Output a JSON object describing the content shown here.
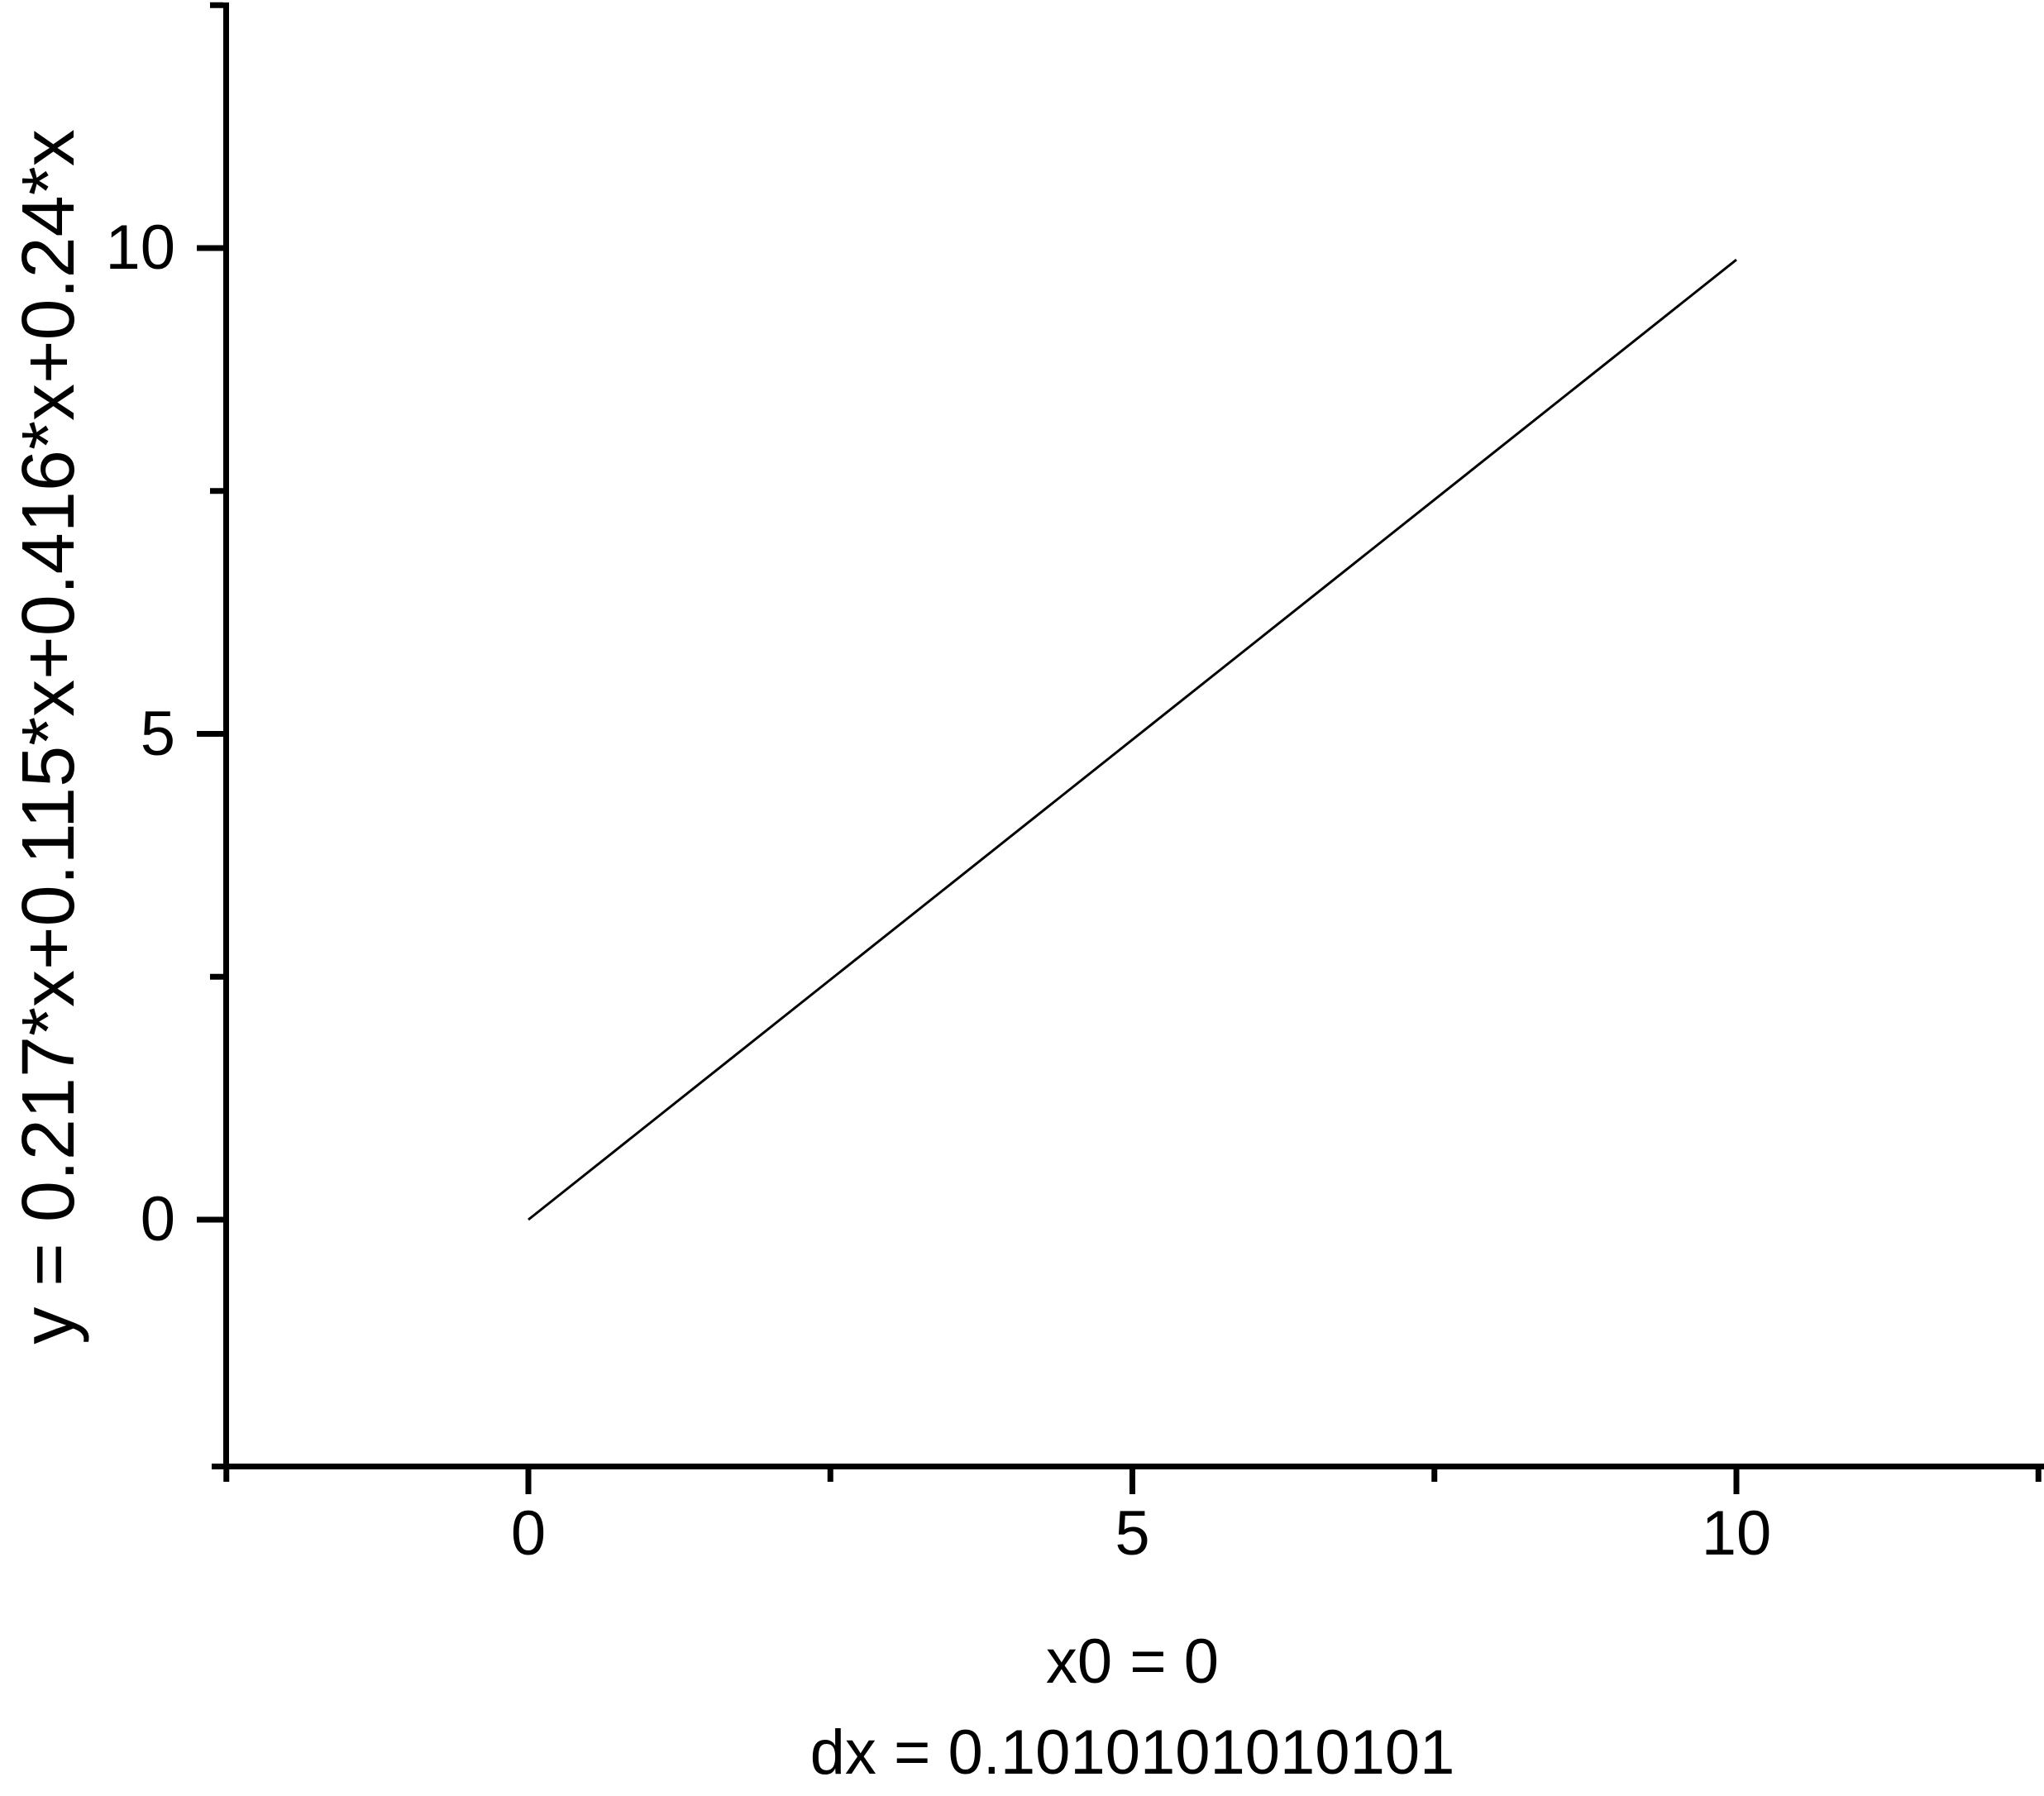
{
  "chart_data": {
    "type": "line",
    "title": "",
    "ylabel": "y = 0.217*x+0.115*x+0.416*x+0.24*x",
    "xlabel_lines": [
      "x0 = 0",
      "dx = 0.1010101010101"
    ],
    "x0_label": "x0 = 0",
    "dx_label": "dx = 0.1010101010101",
    "x_ticks_major": [
      0,
      5,
      10
    ],
    "x_ticks_minor": [
      -2.5,
      2.5,
      7.5,
      12.5
    ],
    "y_ticks_major": [
      0,
      5,
      10
    ],
    "y_ticks_minor": [
      2.5,
      7.5,
      12.5
    ],
    "xlim": [
      -2.6,
      12.5
    ],
    "ylim": [
      -2.5,
      12.5
    ],
    "grid": false,
    "legend": "none",
    "series": [
      {
        "name": "y = 0.217*x+0.115*x+0.416*x+0.24*x",
        "points": [
          [
            0,
            0
          ],
          [
            10,
            9.88
          ]
        ],
        "color": "#000000"
      }
    ]
  },
  "colors": {
    "background": "#ffffff",
    "axis": "#000000",
    "text": "#000000",
    "line": "#000000"
  }
}
